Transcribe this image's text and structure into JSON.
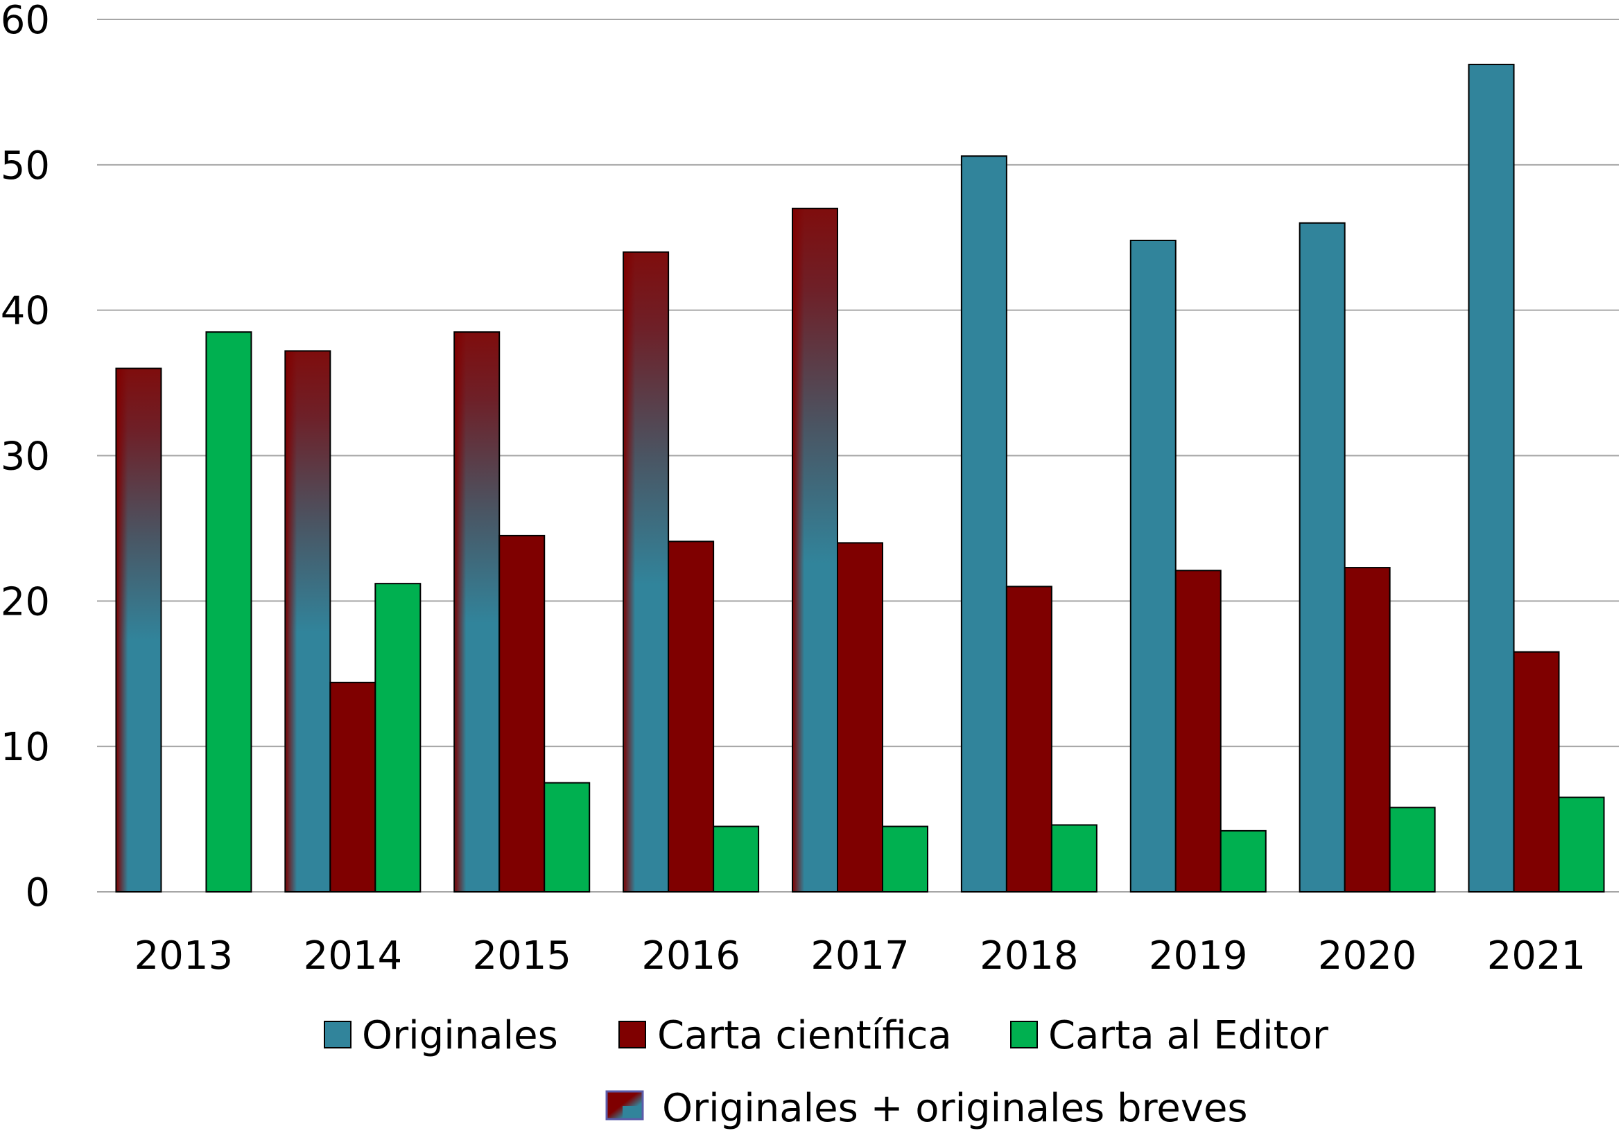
{
  "chart_data": {
    "type": "bar",
    "title": "",
    "xlabel": "",
    "ylabel": "",
    "ylim": [
      0,
      60
    ],
    "yticks": [
      0,
      10,
      20,
      30,
      40,
      50,
      60
    ],
    "grid": true,
    "legend_position": "bottom",
    "categories": [
      "2013",
      "2014",
      "2015",
      "2016",
      "2017",
      "2018",
      "2019",
      "2020",
      "2021"
    ],
    "series": [
      {
        "name": "Originales",
        "color": "#31849b",
        "values": [
          36,
          37.2,
          38.5,
          44,
          47,
          50.6,
          44.8,
          46,
          56.9
        ],
        "combined_values": [
          true,
          true,
          true,
          true,
          true,
          false,
          false,
          false,
          false
        ]
      },
      {
        "name": "Carta científica",
        "color": "#7f0000",
        "values": [
          null,
          14.4,
          24.5,
          24.1,
          24,
          21,
          22.1,
          22.3,
          16.5
        ]
      },
      {
        "name": "Carta al Editor",
        "color": "#00b050",
        "values": [
          38.5,
          21.2,
          7.5,
          4.5,
          4.5,
          4.6,
          4.2,
          5.8,
          6.5
        ]
      }
    ],
    "combined_series_name": "Originales + originales breves"
  }
}
